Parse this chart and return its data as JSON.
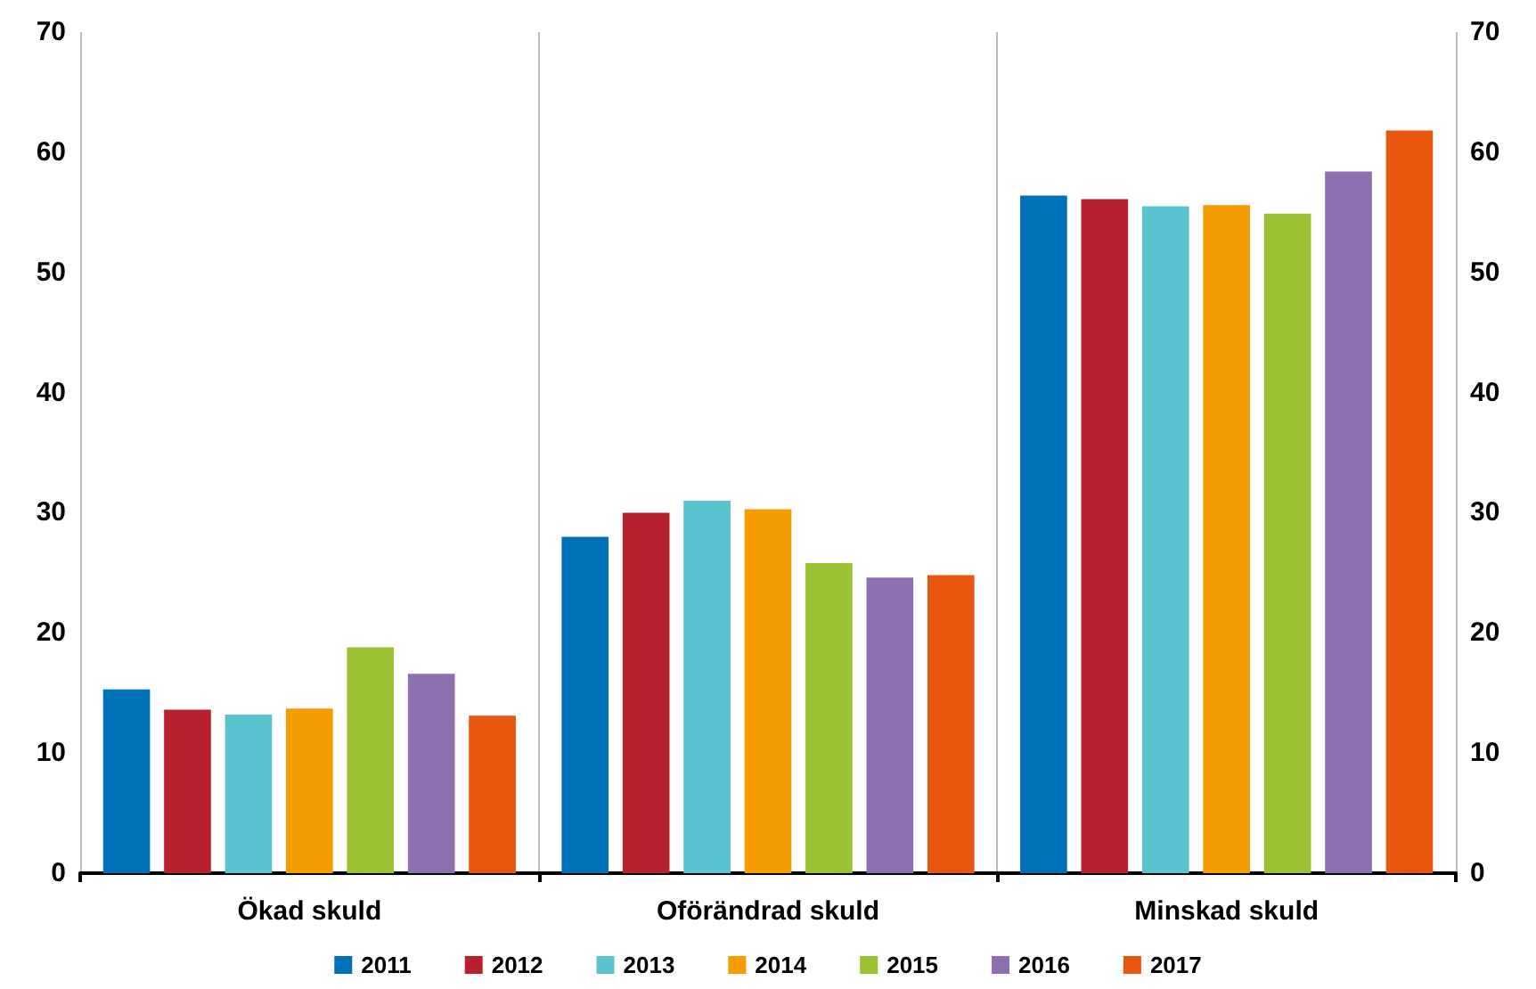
{
  "chart_data": {
    "type": "bar",
    "categories": [
      "Ökad skuld",
      "Oförändrad skuld",
      "Minskad skuld"
    ],
    "series": [
      {
        "name": "2011",
        "color": "#0070b8",
        "values": [
          15.3,
          28.0,
          56.4
        ]
      },
      {
        "name": "2012",
        "color": "#b8202e",
        "values": [
          13.6,
          30.0,
          56.1
        ]
      },
      {
        "name": "2013",
        "color": "#5bc2d0",
        "values": [
          13.2,
          31.0,
          55.5
        ]
      },
      {
        "name": "2014",
        "color": "#f59c00",
        "values": [
          13.7,
          30.3,
          55.6
        ]
      },
      {
        "name": "2015",
        "color": "#9bc232",
        "values": [
          18.8,
          25.8,
          54.9
        ]
      },
      {
        "name": "2016",
        "color": "#8d70b0",
        "values": [
          16.6,
          24.6,
          58.4
        ]
      },
      {
        "name": "2017",
        "color": "#e8560f",
        "values": [
          13.1,
          24.8,
          61.8
        ]
      }
    ],
    "ylim": [
      0,
      70
    ],
    "yticks": [
      0,
      10,
      20,
      30,
      40,
      50,
      60,
      70
    ],
    "y2lim": [
      0,
      70
    ],
    "y2ticks": [
      0,
      10,
      20,
      30,
      40,
      50,
      60,
      70
    ],
    "grid": "x",
    "legend": "bottom"
  }
}
